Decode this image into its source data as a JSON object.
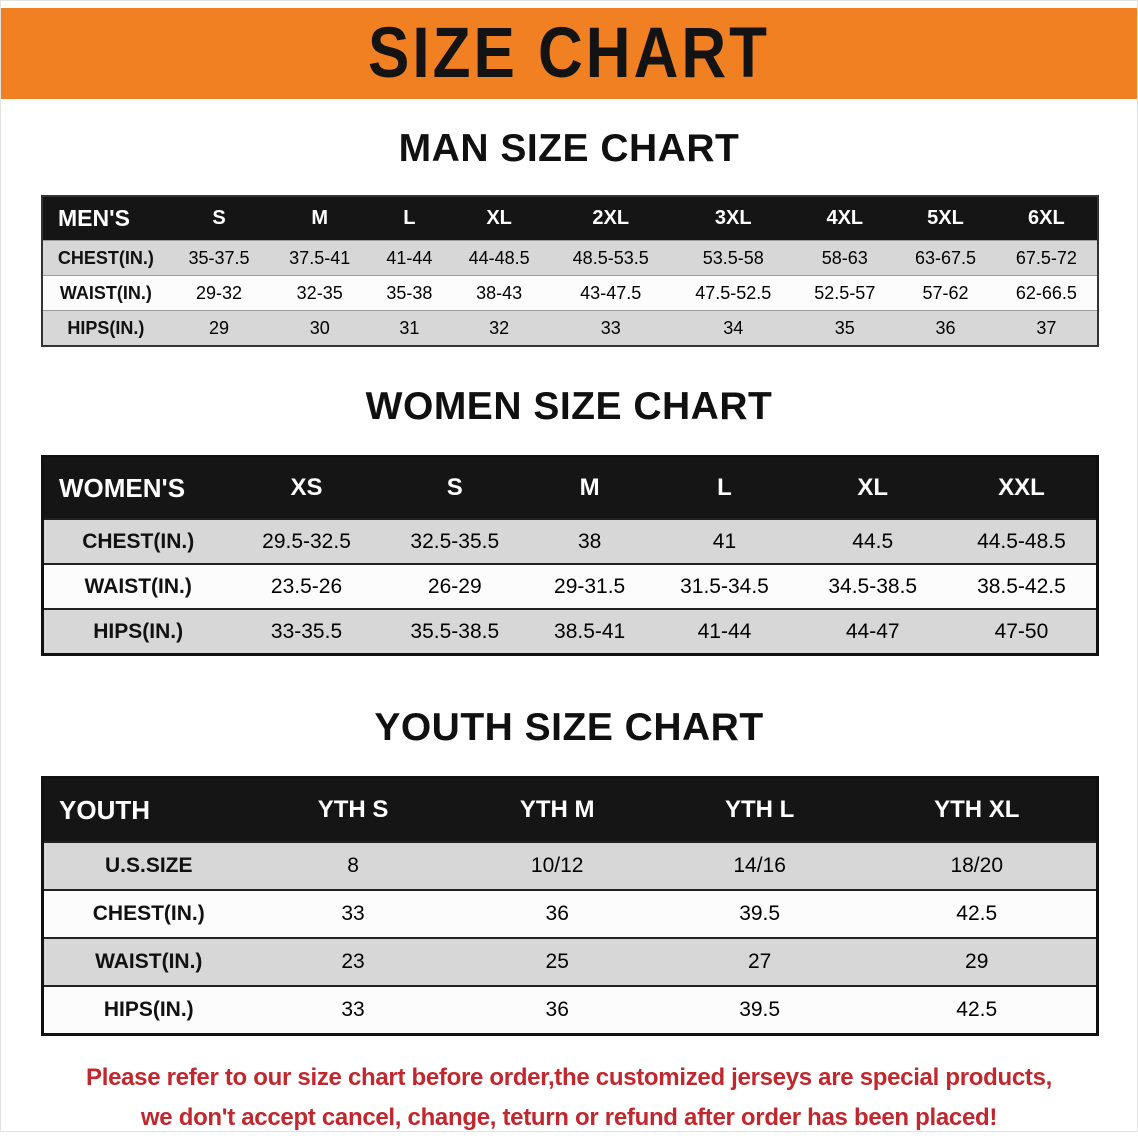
{
  "banner": {
    "title": "SIZE CHART"
  },
  "sections": [
    {
      "heading": "MAN SIZE CHART",
      "table": {
        "header": [
          "MEN'S",
          "S",
          "M",
          "L",
          "XL",
          "2XL",
          "3XL",
          "4XL",
          "5XL",
          "6XL"
        ],
        "rows": [
          {
            "label": "CHEST(IN.)",
            "values": [
              "35-37.5",
              "37.5-41",
              "41-44",
              "44-48.5",
              "48.5-53.5",
              "53.5-58",
              "58-63",
              "63-67.5",
              "67.5-72"
            ]
          },
          {
            "label": "WAIST(IN.)",
            "values": [
              "29-32",
              "32-35",
              "35-38",
              "38-43",
              "43-47.5",
              "47.5-52.5",
              "52.5-57",
              "57-62",
              "62-66.5"
            ]
          },
          {
            "label": "HIPS(IN.)",
            "values": [
              "29",
              "30",
              "31",
              "32",
              "33",
              "34",
              "35",
              "36",
              "37"
            ]
          }
        ]
      }
    },
    {
      "heading": "WOMEN SIZE CHART",
      "table": {
        "header": [
          "WOMEN'S",
          "XS",
          "S",
          "M",
          "L",
          "XL",
          "XXL"
        ],
        "rows": [
          {
            "label": "CHEST(IN.)",
            "values": [
              "29.5-32.5",
              "32.5-35.5",
              "38",
              "41",
              "44.5",
              "44.5-48.5"
            ]
          },
          {
            "label": "WAIST(IN.)",
            "values": [
              "23.5-26",
              "26-29",
              "29-31.5",
              "31.5-34.5",
              "34.5-38.5",
              "38.5-42.5"
            ]
          },
          {
            "label": "HIPS(IN.)",
            "values": [
              "33-35.5",
              "35.5-38.5",
              "38.5-41",
              "41-44",
              "44-47",
              "47-50"
            ]
          }
        ]
      }
    },
    {
      "heading": "YOUTH SIZE CHART",
      "table": {
        "header": [
          "YOUTH",
          "YTH S",
          "YTH M",
          "YTH L",
          "YTH XL"
        ],
        "rows": [
          {
            "label": "U.S.SIZE",
            "values": [
              "8",
              "10/12",
              "14/16",
              "18/20"
            ]
          },
          {
            "label": "CHEST(IN.)",
            "values": [
              "33",
              "36",
              "39.5",
              "42.5"
            ]
          },
          {
            "label": "WAIST(IN.)",
            "values": [
              "23",
              "25",
              "27",
              "29"
            ]
          },
          {
            "label": "HIPS(IN.)",
            "values": [
              "33",
              "36",
              "39.5",
              "42.5"
            ]
          }
        ]
      }
    }
  ],
  "footer": {
    "line1": "Please refer to our size chart before order,the customized jerseys are special products,",
    "line2": "we don't accept cancel, change, teturn or refund after order has been placed!"
  },
  "colors": {
    "banner_bg": "#f08021",
    "banner_text": "#131313",
    "table_header_bg": "#151515",
    "table_header_text": "#ffffff",
    "stripe_gray": "#d7d7d7",
    "stripe_white": "#fcfcfc",
    "disclaimer_text": "#c1272d"
  }
}
